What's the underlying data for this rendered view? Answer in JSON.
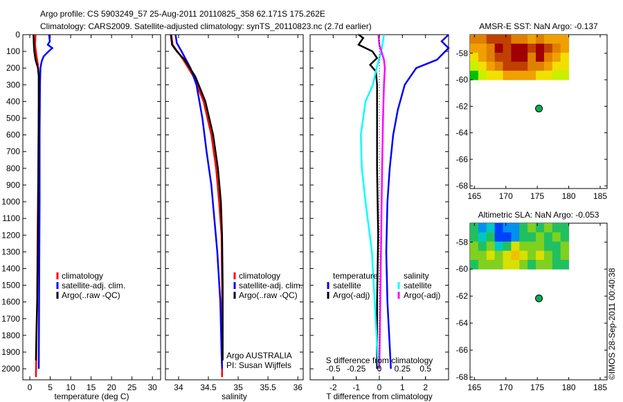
{
  "header": {
    "line1": "Argo profile: CS 5903249_57 25-Aug-2011 20110825_358 62.171S 175.262E",
    "line2": "Climatology: CARS2009. Satellite-adjusted climatology: synTS_20110823.nc (2.7d earlier)"
  },
  "credit": "©IMOS 28-Sep-2011 00:40:38",
  "colors": {
    "climatology": "#ff0000",
    "satellite": "#0000ff",
    "argo": "#000000",
    "s_sat": "#00ffff",
    "s_argo": "#ff00ff",
    "marker": "#00b050"
  },
  "chart_data": [
    {
      "type": "line",
      "id": "temperature",
      "xlabel": "temperature (deg C)",
      "xlim": [
        -1.7,
        32
      ],
      "ylim": [
        0,
        2066
      ],
      "y_reversed": true,
      "xticks": [
        0,
        5,
        10,
        15,
        20,
        25,
        30
      ],
      "yticks": [
        0,
        100,
        200,
        300,
        400,
        500,
        600,
        700,
        800,
        900,
        1000,
        1100,
        1200,
        1300,
        1400,
        1500,
        1600,
        1700,
        1800,
        1900,
        2000
      ],
      "legend": [
        "climatology",
        "satellite-adj. clim.",
        "Argo(..raw -QC)"
      ],
      "series": [
        {
          "name": "climatology",
          "color": "#ff0000",
          "depth": [
            0,
            60,
            120,
            180,
            250,
            400,
            800,
            1200,
            1600,
            2050
          ],
          "values": [
            1.4,
            1.3,
            1.6,
            2.0,
            2.2,
            2.2,
            2.1,
            1.9,
            1.8,
            1.5
          ]
        },
        {
          "name": "satellite-adj. clim.",
          "color": "#0000ff",
          "depth": [
            0,
            40,
            60,
            80,
            100,
            130,
            160,
            200,
            300,
            600,
            1000,
            1500,
            2000
          ],
          "values": [
            4.7,
            4.9,
            4.4,
            5.5,
            4.6,
            3.4,
            2.9,
            2.6,
            2.5,
            2.4,
            2.4,
            2.3,
            2.2
          ]
        },
        {
          "name": "Argo(..raw -QC)",
          "color": "#000000",
          "depth": [
            0,
            60,
            100,
            150,
            200,
            250,
            400,
            800,
            1200,
            1600,
            1800,
            1950
          ],
          "values": [
            0.9,
            1.0,
            1.1,
            1.4,
            2.0,
            2.2,
            2.2,
            2.1,
            2.0,
            1.8,
            1.6,
            1.5
          ]
        }
      ]
    },
    {
      "type": "line",
      "id": "salinity",
      "xlabel": "salinity",
      "xlim": [
        33.78,
        36.09
      ],
      "ylim": [
        0,
        2066
      ],
      "y_reversed": true,
      "xticks": [
        34,
        34.5,
        35,
        35.5,
        36
      ],
      "legend": [
        "climatology",
        "satellite-adj. clim.",
        "Argo(..raw -QC)"
      ],
      "annotation": [
        "Argo AUSTRALIA",
        "PI: Susan Wijffels"
      ],
      "series": [
        {
          "name": "climatology",
          "color": "#ff0000",
          "depth": [
            0,
            60,
            100,
            150,
            250,
            400,
            600,
            800,
            1000,
            1200,
            1500,
            2050
          ],
          "values": [
            33.88,
            33.9,
            33.98,
            34.08,
            34.25,
            34.42,
            34.55,
            34.63,
            34.68,
            34.72,
            34.73,
            34.73
          ]
        },
        {
          "name": "satellite-adj. clim.",
          "color": "#0000ff",
          "depth": [
            0,
            50,
            100,
            200,
            300,
            500,
            700,
            900,
            1100,
            1300,
            1600,
            1900,
            2000
          ],
          "values": [
            33.95,
            33.97,
            34.05,
            34.2,
            34.3,
            34.4,
            34.47,
            34.55,
            34.6,
            34.65,
            34.7,
            34.72,
            34.73
          ]
        },
        {
          "name": "Argo(..raw -QC)",
          "color": "#000000",
          "depth": [
            0,
            60,
            100,
            150,
            250,
            400,
            600,
            800,
            1000,
            1200,
            1500,
            1950
          ],
          "values": [
            33.87,
            33.89,
            33.97,
            34.1,
            34.28,
            34.45,
            34.58,
            34.66,
            34.71,
            34.73,
            34.74,
            34.74
          ]
        }
      ]
    },
    {
      "type": "line",
      "id": "difference",
      "xlabel": "T difference from climatology",
      "x2label": "S difference from climatology",
      "xlim": [
        -3,
        3
      ],
      "x2lim": [
        -0.75,
        0.75
      ],
      "ylim": [
        0,
        2066
      ],
      "y_reversed": true,
      "xticks": [
        -2,
        -1,
        0,
        1,
        2
      ],
      "x2ticks": [
        -0.5,
        -0.25,
        0,
        0.25,
        0.5
      ],
      "legend_titles": [
        "temperature",
        "salinity"
      ],
      "legend": [
        "satellite",
        "Argo(-adj)",
        "satellite",
        "Argo(-adj)"
      ],
      "series": [
        {
          "name": "T satellite",
          "axis": "T",
          "color": "#0000ff",
          "depth": [
            0,
            40,
            80,
            150,
            200,
            300,
            450,
            600,
            800,
            1000,
            1300,
            1600,
            2000
          ],
          "values": [
            3.1,
            2.7,
            3.0,
            2.5,
            1.6,
            1.1,
            0.8,
            0.6,
            0.45,
            0.35,
            0.3,
            0.35,
            0.5
          ]
        },
        {
          "name": "T Argo(-adj)",
          "axis": "T",
          "color": "#000000",
          "depth": [
            0,
            20,
            60,
            100,
            140,
            180,
            220,
            300,
            500,
            800,
            1200,
            1600,
            2000
          ],
          "values": [
            -0.9,
            -0.7,
            -0.9,
            -0.3,
            -0.1,
            -0.4,
            -0.15,
            -0.1,
            -0.1,
            -0.1,
            -0.05,
            -0.1,
            -0.1
          ]
        },
        {
          "name": "S satellite",
          "axis": "S",
          "color": "#00ffff",
          "depth": [
            0,
            40,
            100,
            200,
            300,
            400,
            600,
            800,
            1000,
            1300,
            1600,
            2000
          ],
          "values": [
            0.05,
            0.04,
            0.02,
            -0.03,
            -0.07,
            -0.15,
            -0.2,
            -0.19,
            -0.15,
            -0.08,
            -0.05,
            -0.01
          ]
        },
        {
          "name": "S Argo(-adj)",
          "axis": "S",
          "color": "#ff00ff",
          "depth": [
            0,
            60,
            150,
            200,
            300,
            500,
            800,
            1200,
            1600,
            2000
          ],
          "values": [
            -0.01,
            0.0,
            0.05,
            0.06,
            0.05,
            0.04,
            0.03,
            0.02,
            0.01,
            0.0
          ]
        }
      ]
    },
    {
      "type": "heatmap",
      "id": "sst",
      "title": "AMSR-E SST: NaN Argo: -0.137",
      "xlim": [
        164.3,
        186.1
      ],
      "ylim": [
        -68.2,
        -56.6
      ],
      "xticks": [
        165,
        170,
        175,
        180,
        185
      ],
      "yticks": [
        -58,
        -60,
        -62,
        -64,
        -66,
        -68
      ],
      "data_extent": {
        "lon": [
          164.3,
          180
        ],
        "lat": [
          -60,
          -56.6
        ]
      },
      "marker": {
        "lon": 175.262,
        "lat": -62.171
      },
      "palette": [
        "#00c000",
        "#c8f000",
        "#f0e000",
        "#f0a000",
        "#e08000",
        "#c04000",
        "#a00000"
      ],
      "grid": [
        [
          4,
          4,
          5,
          5,
          5,
          4,
          4,
          3,
          4,
          3,
          3,
          3
        ],
        [
          3,
          3,
          4,
          6,
          5,
          6,
          6,
          5,
          6,
          5,
          4,
          3
        ],
        [
          2,
          3,
          4,
          5,
          5,
          6,
          6,
          4,
          6,
          4,
          3,
          2
        ],
        [
          1,
          2,
          3,
          4,
          5,
          5,
          5,
          4,
          4,
          3,
          2,
          2
        ],
        [
          0,
          1,
          2,
          2,
          3,
          3,
          3,
          3,
          2,
          2,
          1,
          1
        ]
      ]
    },
    {
      "type": "heatmap",
      "id": "sla",
      "title": "Altimetric SLA: NaN Argo: -0.053",
      "xlim": [
        164.3,
        186.1
      ],
      "ylim": [
        -68.2,
        -56.6
      ],
      "xticks": [
        165,
        170,
        175,
        180,
        185
      ],
      "yticks": [
        -58,
        -60,
        -62,
        -64,
        -66,
        -68
      ],
      "data_extent": {
        "lon": [
          164.3,
          180
        ],
        "lat": [
          -60,
          -56.6
        ]
      },
      "marker": {
        "lon": 175.262,
        "lat": -62.171
      },
      "palette": [
        "#0040ff",
        "#0090f0",
        "#00c8c0",
        "#20c060",
        "#80d020",
        "#d8e000",
        "#f0c000"
      ],
      "grid": [
        [
          3,
          1,
          2,
          0,
          1,
          1,
          3,
          4,
          3,
          4,
          3,
          3
        ],
        [
          3,
          2,
          3,
          0,
          0,
          1,
          3,
          3,
          4,
          3,
          4,
          3
        ],
        [
          4,
          3,
          4,
          2,
          3,
          5,
          4,
          4,
          4,
          3,
          3,
          4
        ],
        [
          4,
          4,
          5,
          4,
          5,
          6,
          5,
          4,
          5,
          4,
          3,
          4
        ],
        [
          3,
          4,
          4,
          4,
          5,
          5,
          4,
          3,
          4,
          4,
          3,
          3
        ]
      ]
    }
  ]
}
